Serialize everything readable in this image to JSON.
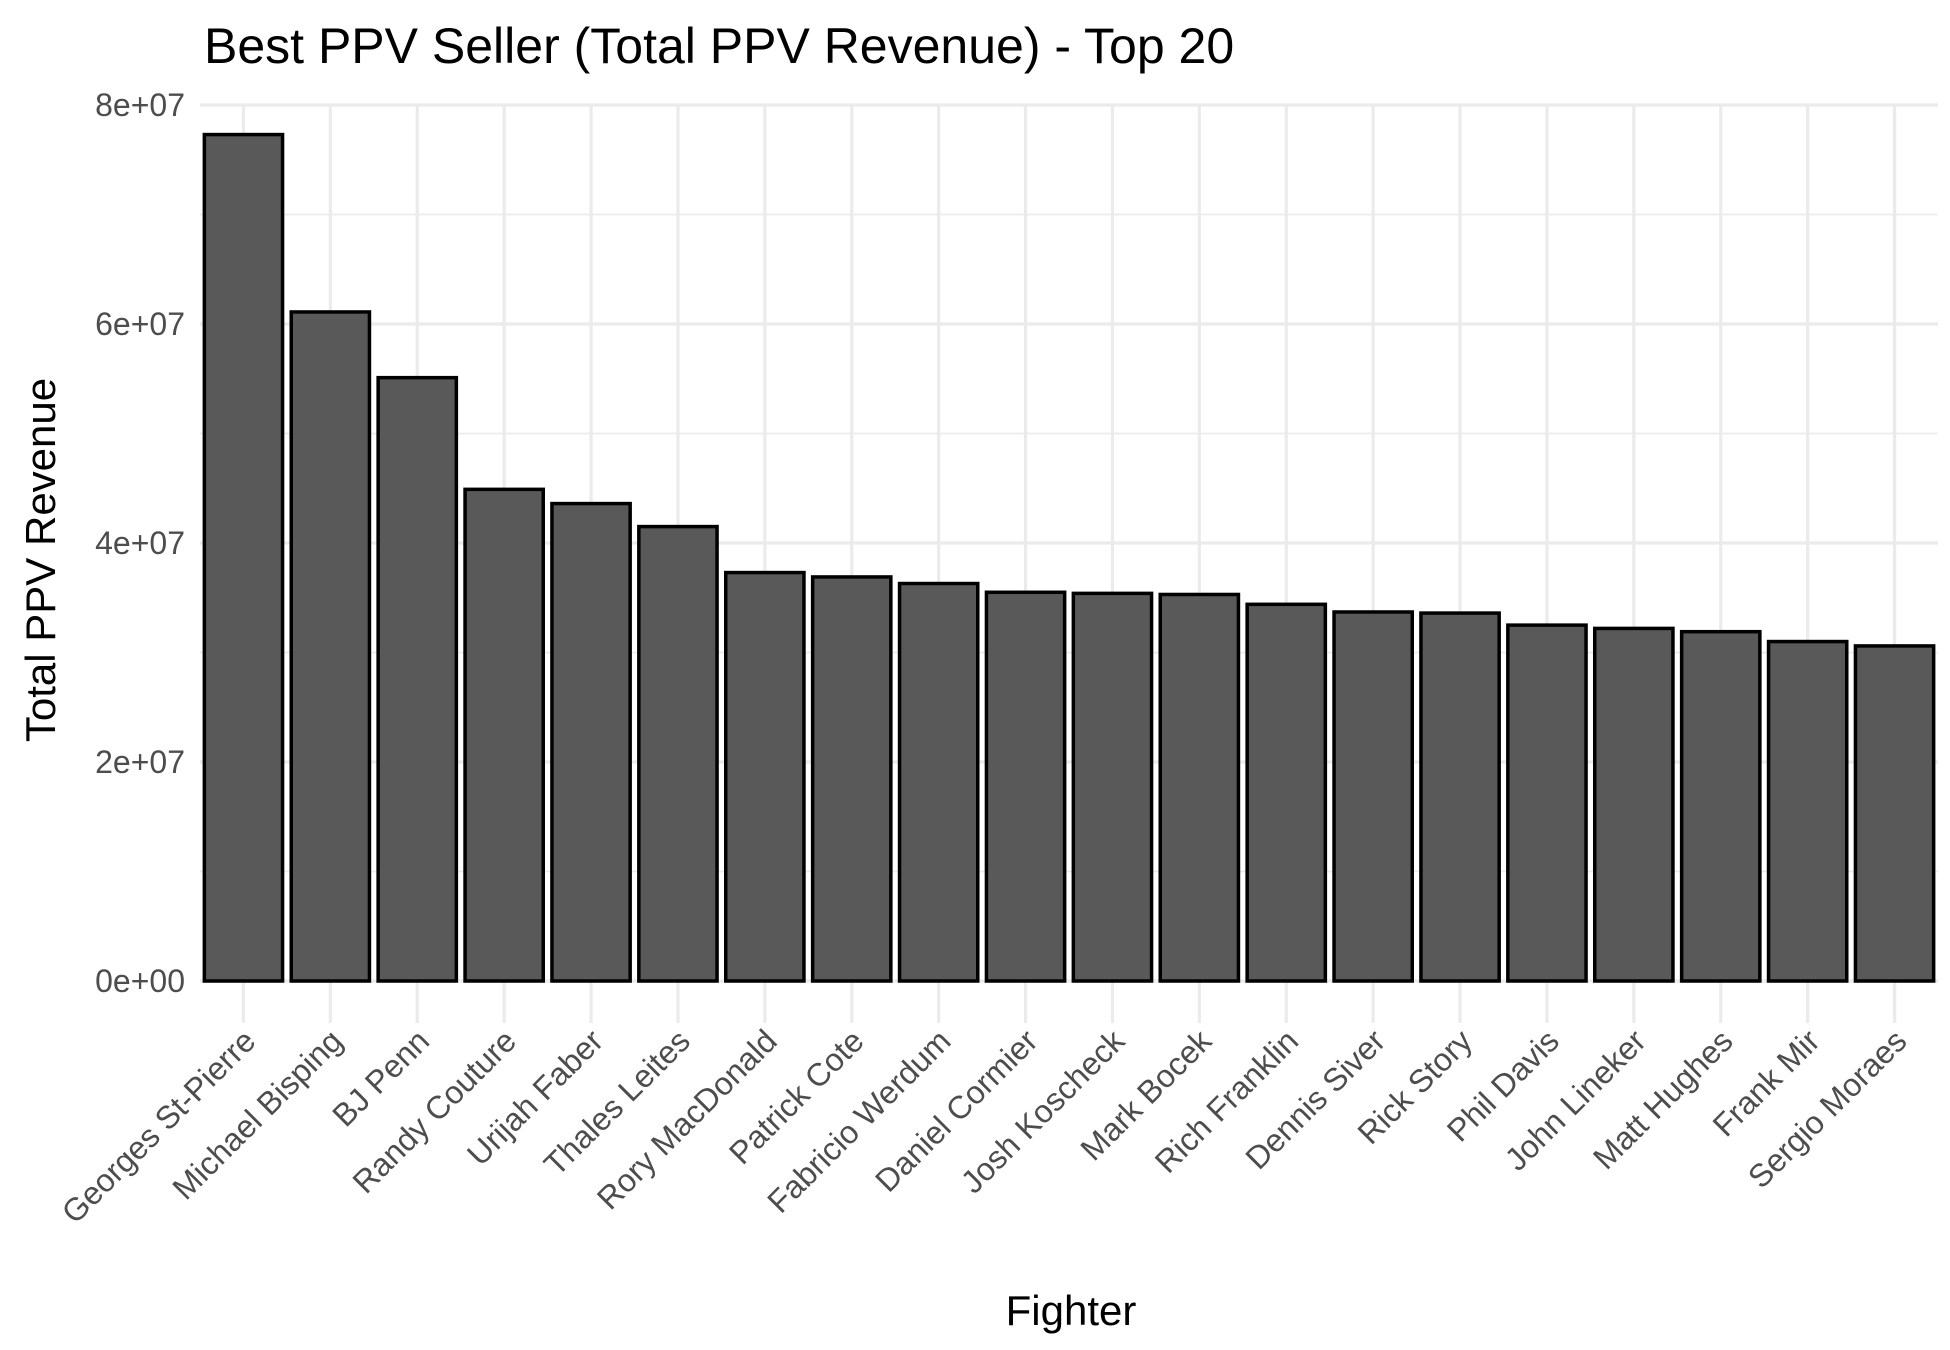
{
  "chart_data": {
    "type": "bar",
    "title": "Best PPV Seller (Total PPV Revenue) - Top 20",
    "xlabel": "Fighter",
    "ylabel": "Total PPV Revenue",
    "ylim": [
      0,
      80000000
    ],
    "y_ticks": [
      {
        "value": 0,
        "label": "0e+00"
      },
      {
        "value": 20000000,
        "label": "2e+07"
      },
      {
        "value": 40000000,
        "label": "4e+07"
      },
      {
        "value": 60000000,
        "label": "6e+07"
      },
      {
        "value": 80000000,
        "label": "8e+07"
      }
    ],
    "grid": true,
    "legend": "none",
    "bar_fill": "#595959",
    "bar_outline": "#000000",
    "grid_color": "#ebebeb",
    "categories": [
      "Georges St-Pierre",
      "Michael Bisping",
      "BJ Penn",
      "Randy Couture",
      "Urijah Faber",
      "Thales Leites",
      "Rory MacDonald",
      "Patrick Cote",
      "Fabricio Werdum",
      "Daniel Cormier",
      "Josh Koscheck",
      "Mark Bocek",
      "Rich Franklin",
      "Dennis Siver",
      "Rick Story",
      "Phil Davis",
      "John Lineker",
      "Matt Hughes",
      "Frank Mir",
      "Sergio Moraes"
    ],
    "values": [
      77300000,
      61100000,
      55100000,
      44900000,
      43600000,
      41500000,
      37300000,
      36900000,
      36300000,
      35500000,
      35400000,
      35300000,
      34400000,
      33700000,
      33600000,
      32500000,
      32200000,
      31900000,
      31000000,
      30600000
    ]
  }
}
